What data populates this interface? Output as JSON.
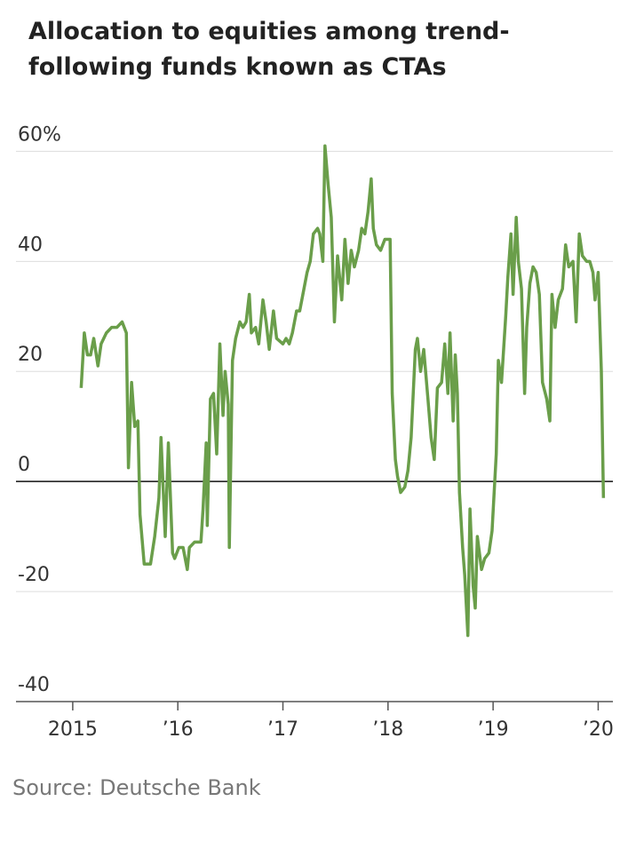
{
  "chart_data": {
    "type": "line",
    "title": "Allocation to equities among trend-following funds known as CTAs",
    "source": "Source: Deutsche Bank",
    "x": [
      2015.08,
      2015.11,
      2015.14,
      2015.17,
      2015.2,
      2015.24,
      2015.27,
      2015.32,
      2015.37,
      2015.42,
      2015.47,
      2015.51,
      2015.53,
      2015.56,
      2015.59,
      2015.62,
      2015.64,
      2015.68,
      2015.74,
      2015.78,
      2015.82,
      2015.84,
      2015.88,
      2015.91,
      2015.95,
      2015.97,
      2016.01,
      2016.05,
      2016.09,
      2016.11,
      2016.16,
      2016.22,
      2016.24,
      2016.27,
      2016.28,
      2016.31,
      2016.34,
      2016.37,
      2016.4,
      2016.43,
      2016.45,
      2016.48,
      2016.49,
      2016.52,
      2016.55,
      2016.59,
      2016.62,
      2016.65,
      2016.68,
      2016.7,
      2016.74,
      2016.77,
      2016.81,
      2016.84,
      2016.87,
      2016.91,
      2016.94,
      2017.0,
      2017.03,
      2017.06,
      2017.09,
      2017.13,
      2017.16,
      2017.19,
      2017.23,
      2017.26,
      2017.29,
      2017.33,
      2017.35,
      2017.38,
      2017.4,
      2017.43,
      2017.46,
      2017.49,
      2017.52,
      2017.56,
      2017.59,
      2017.62,
      2017.65,
      2017.68,
      2017.72,
      2017.75,
      2017.78,
      2017.81,
      2017.84,
      2017.86,
      2017.89,
      2017.93,
      2017.97,
      2018.02,
      2018.04,
      2018.07,
      2018.09,
      2018.12,
      2018.16,
      2018.19,
      2018.22,
      2018.26,
      2018.28,
      2018.31,
      2018.34,
      2018.38,
      2018.41,
      2018.44,
      2018.47,
      2018.51,
      2018.54,
      2018.57,
      2018.59,
      2018.62,
      2018.64,
      2018.66,
      2018.68,
      2018.71,
      2018.73,
      2018.76,
      2018.78,
      2018.81,
      2018.83,
      2018.85,
      2018.89,
      2018.92,
      2018.96,
      2018.99,
      2019.03,
      2019.05,
      2019.08,
      2019.12,
      2019.14,
      2019.17,
      2019.19,
      2019.22,
      2019.24,
      2019.27,
      2019.3,
      2019.32,
      2019.35,
      2019.38,
      2019.41,
      2019.44,
      2019.47,
      2019.51,
      2019.54,
      2019.56,
      2019.59,
      2019.62,
      2019.66,
      2019.69,
      2019.72,
      2019.76,
      2019.79,
      2019.82,
      2019.85,
      2019.89,
      2019.92,
      2019.95,
      2019.97,
      2020.0,
      2020.03,
      2020.05
    ],
    "series": [
      {
        "color": "#6a9e4a",
        "values": [
          17,
          27,
          23,
          23,
          26,
          21,
          25,
          27,
          28,
          28,
          29,
          27,
          2.5,
          18,
          10,
          11,
          -6,
          -15,
          -15,
          -10,
          -3,
          8,
          -10,
          7,
          -13,
          -14,
          -12,
          -12,
          -16,
          -12,
          -11,
          -11,
          -5,
          7,
          -8,
          15,
          16,
          5,
          25,
          12,
          20,
          14,
          -12,
          22,
          26,
          29,
          28,
          29,
          34,
          27,
          28,
          25,
          33,
          29,
          24,
          31,
          26,
          25,
          26,
          25,
          27,
          31,
          31,
          34,
          38,
          40,
          45,
          46,
          45,
          40,
          61,
          54,
          48,
          29,
          41,
          33,
          44,
          36,
          42,
          39,
          42,
          46,
          45,
          49,
          55,
          46,
          43,
          42,
          44,
          44,
          16,
          4,
          1,
          -2,
          -1,
          2,
          8,
          24,
          26,
          20,
          24,
          15,
          8,
          4,
          17,
          18,
          25,
          16,
          27,
          11,
          23,
          16,
          -2,
          -12,
          -17,
          -28,
          -5,
          -19,
          -23,
          -10,
          -16,
          -14,
          -13,
          -9,
          5,
          22,
          18,
          30,
          37,
          45,
          34,
          48,
          40,
          35,
          16,
          28,
          36,
          39,
          38,
          34,
          18,
          15,
          11,
          34,
          28,
          33,
          35,
          43,
          39,
          40,
          29,
          45,
          41,
          40,
          40,
          38,
          33,
          38,
          20,
          -3
        ]
      }
    ],
    "xlim": [
      2014.46,
      2020.14
    ],
    "xticks": [
      2015,
      {
        "value": 2016,
        "label": "’16"
      },
      {
        "value": 2017,
        "label": "’17"
      },
      {
        "value": 2018,
        "label": "’18"
      },
      {
        "value": 2019,
        "label": "’19"
      },
      {
        "value": 2020,
        "label": "’20"
      }
    ],
    "ylim": [
      -40,
      62
    ],
    "yticks": [
      {
        "value": 60,
        "label": "60%"
      },
      40,
      20,
      0,
      -20,
      -40
    ],
    "grid": true
  }
}
